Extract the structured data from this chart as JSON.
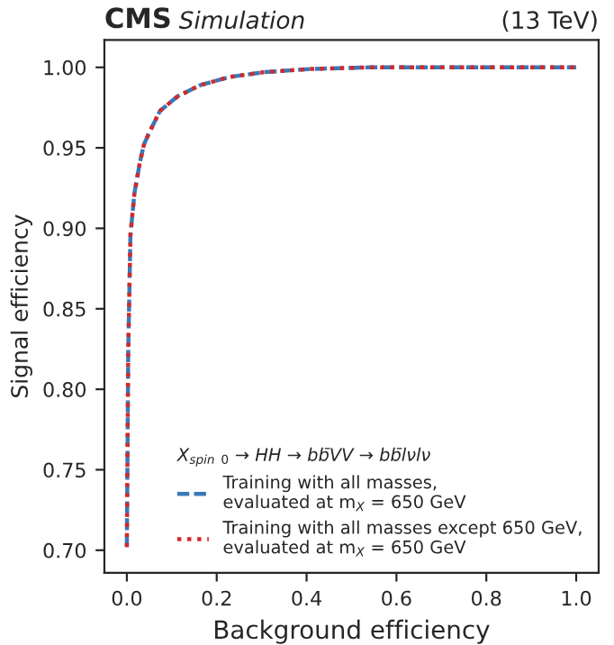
{
  "chart_data": {
    "type": "line",
    "title": "CMS",
    "subtitle": "Simulation",
    "annotations": [
      "(13 TeV)"
    ],
    "xlabel": "Background efficiency",
    "ylabel": "Signal efficiency",
    "legend_title": "X$_{spin}$ $_{0}$ → HH → bb̄VV → bb̄lνlν",
    "x": [
      0,
      0.003,
      0.008,
      0.017,
      0.029,
      0.038,
      0.049,
      0.074,
      0.113,
      0.164,
      0.228,
      0.305,
      0.41,
      0.54,
      0.7,
      0.85,
      1.0
    ],
    "series": [
      {
        "name": "Training with all masses,\nevaluated at m$_{X}$ = 650 GeV",
        "color": "#3a78b8",
        "line_style": "dashed",
        "values": [
          0.702,
          0.822,
          0.896,
          0.922,
          0.941,
          0.952,
          0.959,
          0.973,
          0.982,
          0.989,
          0.994,
          0.997,
          0.999,
          1.0,
          1.0,
          1.0,
          1.0
        ]
      },
      {
        "name": "Training with all masses except 650 GeV,\nevaluated at m$_{X}$ = 650 GeV",
        "color": "#d62728",
        "line_style": "dotted",
        "values": [
          0.702,
          0.822,
          0.896,
          0.922,
          0.941,
          0.952,
          0.959,
          0.973,
          0.982,
          0.989,
          0.994,
          0.997,
          0.999,
          1.0,
          1.0,
          1.0,
          1.0
        ]
      }
    ],
    "xlim": [
      -0.05,
      1.05
    ],
    "ylim": [
      0.686,
      1.017
    ],
    "xticks": [
      {
        "value": 0,
        "label": "0.0"
      },
      0.2,
      0.4,
      0.6,
      0.8,
      {
        "value": 1,
        "label": "1.0"
      }
    ],
    "yticks": [
      {
        "value": 0.7,
        "label": "0.70"
      },
      0.75,
      {
        "value": 0.8,
        "label": "0.80"
      },
      0.85,
      {
        "value": 0.9,
        "label": "0.90"
      },
      0.95,
      {
        "value": 1.0,
        "label": "1.00"
      }
    ],
    "legend": "bottom right",
    "grid": false,
    "marker": "none"
  }
}
